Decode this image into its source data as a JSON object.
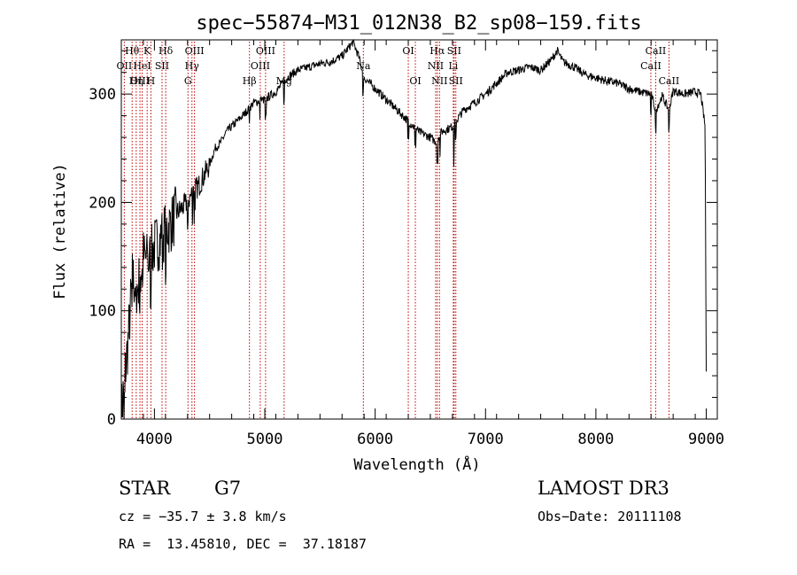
{
  "chart_data": {
    "type": "line",
    "title": "spec−55874−M31_012N38_B2_sp08−159.fits",
    "xlabel": "Wavelength (Å)",
    "ylabel": "Flux (relative)",
    "xlim": [
      3700,
      9100
    ],
    "ylim": [
      0,
      350
    ],
    "xticks": [
      4000,
      5000,
      6000,
      7000,
      8000,
      9000
    ],
    "yticks": [
      0,
      100,
      200,
      300
    ],
    "grid": false,
    "series": [
      {
        "name": "flux",
        "x": [
          3700,
          3760,
          3800,
          3850,
          3900,
          3950,
          4000,
          4050,
          4100,
          4150,
          4200,
          4250,
          4300,
          4350,
          4400,
          4450,
          4500,
          4550,
          4600,
          4650,
          4700,
          4800,
          4900,
          5000,
          5100,
          5200,
          5300,
          5400,
          5500,
          5600,
          5700,
          5800,
          5850,
          5900,
          6000,
          6100,
          6200,
          6300,
          6400,
          6500,
          6560,
          6600,
          6700,
          6800,
          6900,
          7000,
          7100,
          7200,
          7300,
          7400,
          7500,
          7600,
          7650,
          7700,
          7800,
          7900,
          8000,
          8100,
          8200,
          8300,
          8400,
          8500,
          8542,
          8600,
          8662,
          8700,
          8800,
          8900,
          8950,
          8990,
          9000
        ],
        "y": [
          5,
          70,
          130,
          120,
          150,
          145,
          160,
          165,
          175,
          180,
          190,
          195,
          200,
          210,
          215,
          225,
          235,
          250,
          255,
          265,
          270,
          280,
          292,
          295,
          302,
          315,
          322,
          325,
          328,
          330,
          335,
          348,
          335,
          315,
          305,
          295,
          285,
          275,
          265,
          260,
          255,
          265,
          270,
          285,
          292,
          300,
          310,
          320,
          322,
          325,
          322,
          332,
          340,
          330,
          325,
          318,
          315,
          312,
          310,
          305,
          302,
          300,
          285,
          298,
          285,
          303,
          300,
          302,
          300,
          270,
          40
        ]
      }
    ],
    "spectral_lines": [
      {
        "label": "Hθ",
        "wavelength": 3798,
        "row": 1
      },
      {
        "label": "K",
        "wavelength": 3934,
        "row": 1
      },
      {
        "label": "Hδ",
        "wavelength": 4102,
        "row": 1
      },
      {
        "label": "OII",
        "wavelength": 3727,
        "row": 2
      },
      {
        "label": "HeI",
        "wavelength": 3889,
        "row": 2
      },
      {
        "label": "SII",
        "wavelength": 4069,
        "row": 2
      },
      {
        "label": "OIII",
        "wavelength": 3869,
        "row": 3
      },
      {
        "label": "Hη",
        "wavelength": 3835,
        "row": 3
      },
      {
        "label": "H",
        "wavelength": 3968,
        "row": 3
      },
      {
        "label": "OIII",
        "wavelength": 4363,
        "row": 1
      },
      {
        "label": "Hγ",
        "wavelength": 4340,
        "row": 2
      },
      {
        "label": "G",
        "wavelength": 4304,
        "row": 3
      },
      {
        "label": "OIII",
        "wavelength": 5007,
        "row": 1
      },
      {
        "label": "OIII",
        "wavelength": 4959,
        "row": 2
      },
      {
        "label": "Hβ",
        "wavelength": 4861,
        "row": 3
      },
      {
        "label": "Mg",
        "wavelength": 5175,
        "row": 3
      },
      {
        "label": "Na",
        "wavelength": 5893,
        "row": 2
      },
      {
        "label": "OI",
        "wavelength": 6300,
        "row": 1
      },
      {
        "label": "OI",
        "wavelength": 6364,
        "row": 3
      },
      {
        "label": "Hα",
        "wavelength": 6563,
        "row": 1
      },
      {
        "label": "SII",
        "wavelength": 6716,
        "row": 1
      },
      {
        "label": "NII",
        "wavelength": 6548,
        "row": 2
      },
      {
        "label": "Li",
        "wavelength": 6708,
        "row": 2
      },
      {
        "label": "NII",
        "wavelength": 6583,
        "row": 3
      },
      {
        "label": "SII",
        "wavelength": 6731,
        "row": 3
      },
      {
        "label": "CaII",
        "wavelength": 8542,
        "row": 1
      },
      {
        "label": "CaII",
        "wavelength": 8498,
        "row": 2
      },
      {
        "label": "CaII",
        "wavelength": 8662,
        "row": 3
      }
    ]
  },
  "info": {
    "class": "STAR",
    "subclass": "G7",
    "survey": "LAMOST DR3",
    "cz": "cz = −35.7 ± 3.8 km/s",
    "obs_date": "Obs−Date: 20111108",
    "radec": "RA =  13.45810, DEC =  37.18187"
  }
}
